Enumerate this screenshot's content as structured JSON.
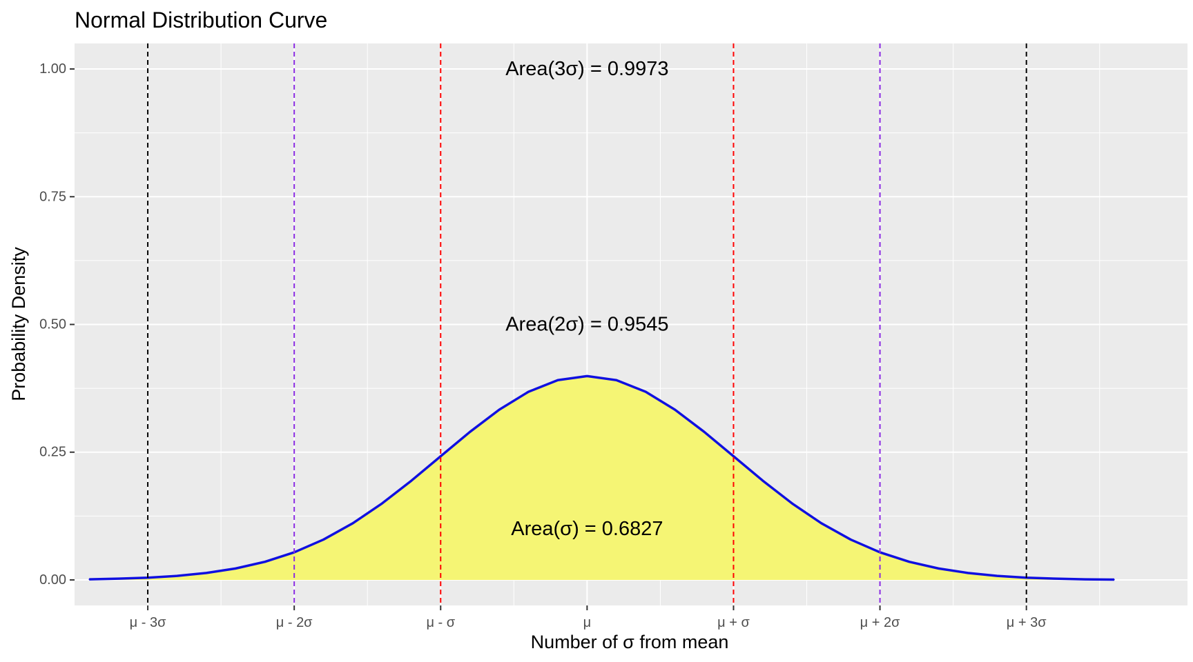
{
  "chart_data": {
    "type": "area",
    "title": "Normal Distribution Curve",
    "xlabel": "Number of σ from mean",
    "ylabel": "Probability Density",
    "xlim": [
      -3.5,
      4.1
    ],
    "ylim": [
      -0.05,
      1.05
    ],
    "grid": true,
    "legend": "none",
    "x_ticks": [
      {
        "value": -3,
        "label": "μ - 3σ"
      },
      {
        "value": -2,
        "label": "μ - 2σ"
      },
      {
        "value": -1,
        "label": "μ - σ"
      },
      {
        "value": 0,
        "label": "μ"
      },
      {
        "value": 1,
        "label": "μ + σ"
      },
      {
        "value": 2,
        "label": "μ + 2σ"
      },
      {
        "value": 3,
        "label": "μ + 3σ"
      }
    ],
    "y_ticks": [
      {
        "value": 0,
        "label": "0.00"
      },
      {
        "value": 0.25,
        "label": "0.25"
      },
      {
        "value": 0.5,
        "label": "0.50"
      },
      {
        "value": 0.75,
        "label": "0.75"
      },
      {
        "value": 1,
        "label": "1.00"
      }
    ],
    "series": [
      {
        "kind": "density",
        "fill": "#f5f574",
        "line_color": "#1010e0",
        "x": [
          -3.4,
          -3.2,
          -3.0,
          -2.8,
          -2.6,
          -2.4,
          -2.2,
          -2.0,
          -1.8,
          -1.6,
          -1.4,
          -1.2,
          -1.0,
          -0.8,
          -0.6,
          -0.4,
          -0.2,
          0.0,
          0.2,
          0.4,
          0.6,
          0.8,
          1.0,
          1.2,
          1.4,
          1.6,
          1.8,
          2.0,
          2.2,
          2.4,
          2.6,
          2.8,
          3.0,
          3.2,
          3.4,
          3.6
        ],
        "y": [
          0.0012,
          0.0024,
          0.0044,
          0.0079,
          0.0136,
          0.0224,
          0.0355,
          0.054,
          0.079,
          0.1109,
          0.1497,
          0.1942,
          0.242,
          0.2897,
          0.3332,
          0.3683,
          0.391,
          0.3989,
          0.391,
          0.3683,
          0.3332,
          0.2897,
          0.242,
          0.1942,
          0.1497,
          0.1109,
          0.079,
          0.054,
          0.0355,
          0.0224,
          0.0136,
          0.0079,
          0.0044,
          0.0024,
          0.0012,
          0.0006
        ]
      }
    ],
    "vlines": [
      {
        "x": -3,
        "color": "#000000"
      },
      {
        "x": -2,
        "color": "#8a2be2"
      },
      {
        "x": -1,
        "color": "#ff0000"
      },
      {
        "x": 1,
        "color": "#ff0000"
      },
      {
        "x": 2,
        "color": "#8a2be2"
      },
      {
        "x": 3,
        "color": "#000000"
      }
    ],
    "annotations": [
      {
        "x": 0,
        "y": 1.0,
        "text": "Area(3σ) = 0.9973"
      },
      {
        "x": 0,
        "y": 0.5,
        "text": "Area(2σ) = 0.9545"
      },
      {
        "x": 0,
        "y": 0.1,
        "text": "Area(σ) = 0.6827"
      }
    ],
    "colors": {
      "panel_background": "#ebebeb",
      "grid": "#ffffff",
      "tick_label": "#4d4d4d",
      "axis_tick": "#333333"
    }
  }
}
